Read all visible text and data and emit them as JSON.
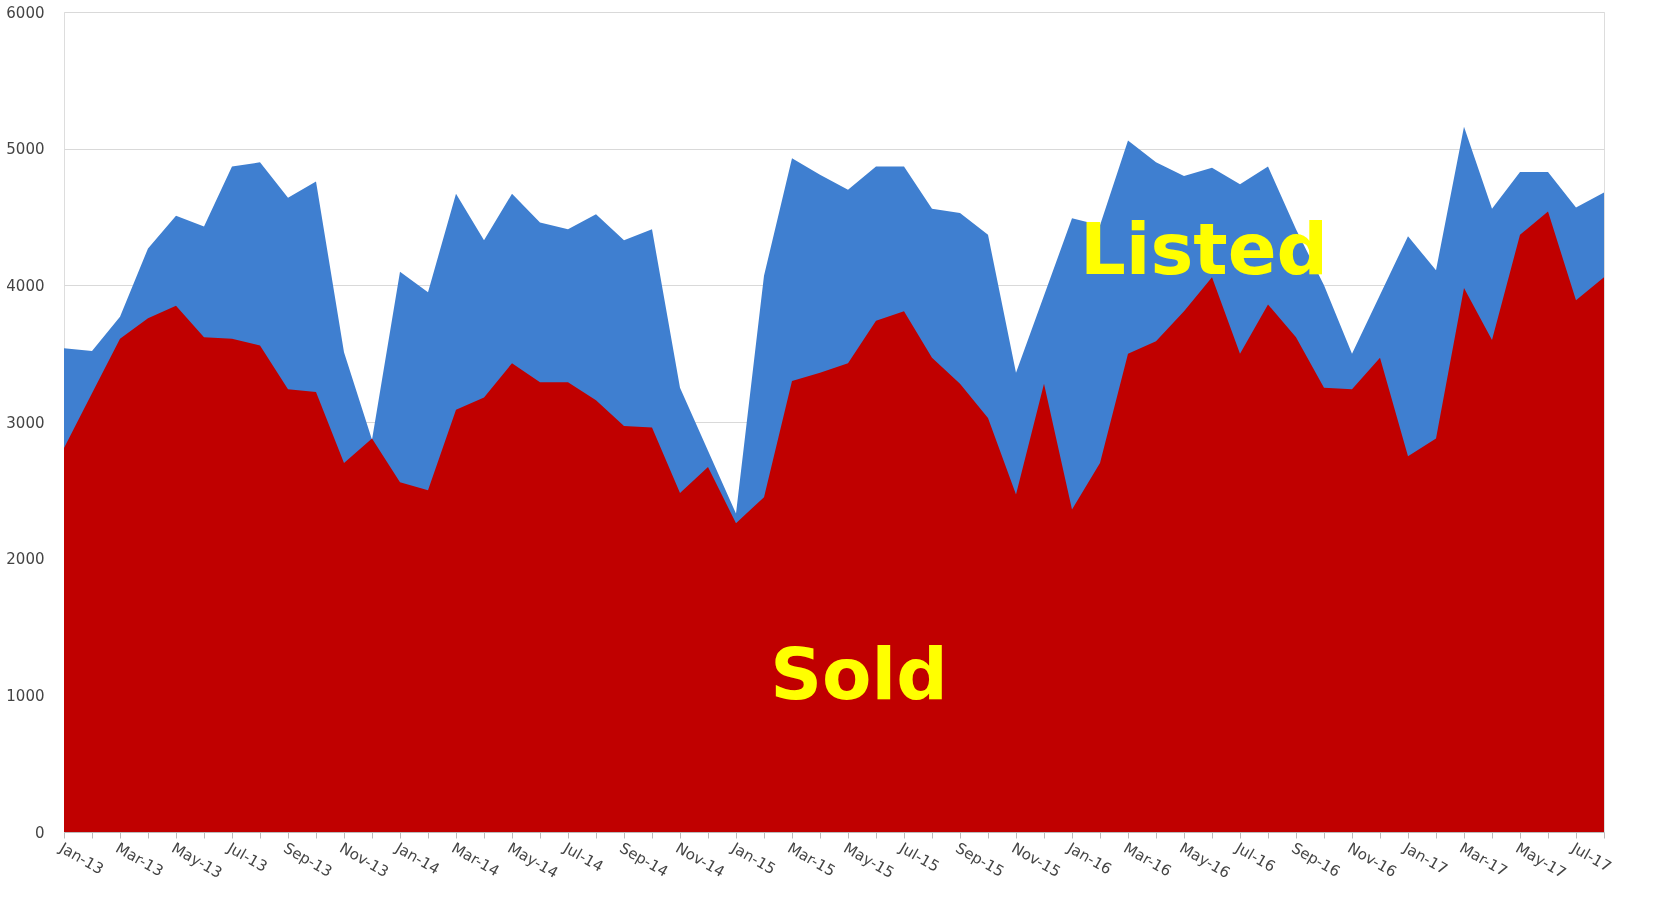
{
  "chart_data": {
    "type": "area",
    "categories": [
      "Jan-13",
      null,
      "Mar-13",
      null,
      "May-13",
      null,
      "Jul-13",
      null,
      "Sep-13",
      null,
      "Nov-13",
      null,
      "Jan-14",
      null,
      "Mar-14",
      null,
      "May-14",
      null,
      "Jul-14",
      null,
      "Sep-14",
      null,
      "Nov-14",
      null,
      "Jan-15",
      null,
      "Mar-15",
      null,
      "May-15",
      null,
      "Jul-15",
      null,
      "Sep-15",
      null,
      "Nov-15",
      null,
      "Jan-16",
      null,
      "Mar-16",
      null,
      "May-16",
      null,
      "Jul-16",
      null,
      "Sep-16",
      null,
      "Nov-16",
      null,
      "Jan-17",
      null,
      "Mar-17",
      null,
      "May-17",
      null,
      "Jul-17",
      null
    ],
    "series": [
      {
        "name": "Listed",
        "color": "#3f7fd0",
        "values": [
          3540,
          3520,
          3770,
          4270,
          4510,
          4430,
          4870,
          4900,
          4640,
          4760,
          3510,
          2870,
          4100,
          3950,
          4670,
          4330,
          4670,
          4460,
          4410,
          4520,
          4330,
          4410,
          3250,
          2790,
          2330,
          4070,
          4930,
          4810,
          4700,
          4870,
          4870,
          4560,
          4530,
          4370,
          3360,
          null,
          4490,
          4440,
          5060,
          4900,
          4800,
          4860,
          4740,
          4870,
          4410,
          4000,
          3500,
          null,
          4360,
          4110,
          5160,
          4560,
          4830,
          4830,
          4570,
          4680
        ]
      },
      {
        "name": "Sold",
        "color": "#c00000",
        "values": [
          2810,
          3210,
          3610,
          3760,
          3850,
          3620,
          3610,
          3560,
          3240,
          3220,
          2700,
          2880,
          2560,
          2500,
          3090,
          3180,
          3430,
          3290,
          3290,
          3160,
          2970,
          2960,
          2480,
          2670,
          2260,
          2450,
          3300,
          3360,
          3430,
          3740,
          3810,
          3470,
          3280,
          3030,
          2470,
          3280,
          2360,
          2700,
          3500,
          3590,
          3810,
          4060,
          3500,
          3860,
          3620,
          3250,
          3240,
          3470,
          2750,
          2880,
          3980,
          3600,
          4370,
          4540,
          3890,
          4060
        ]
      }
    ],
    "ylim": [
      0,
      6000
    ],
    "yticks": [
      0,
      1000,
      2000,
      3000,
      4000,
      5000,
      6000
    ],
    "grid": "y"
  }
}
